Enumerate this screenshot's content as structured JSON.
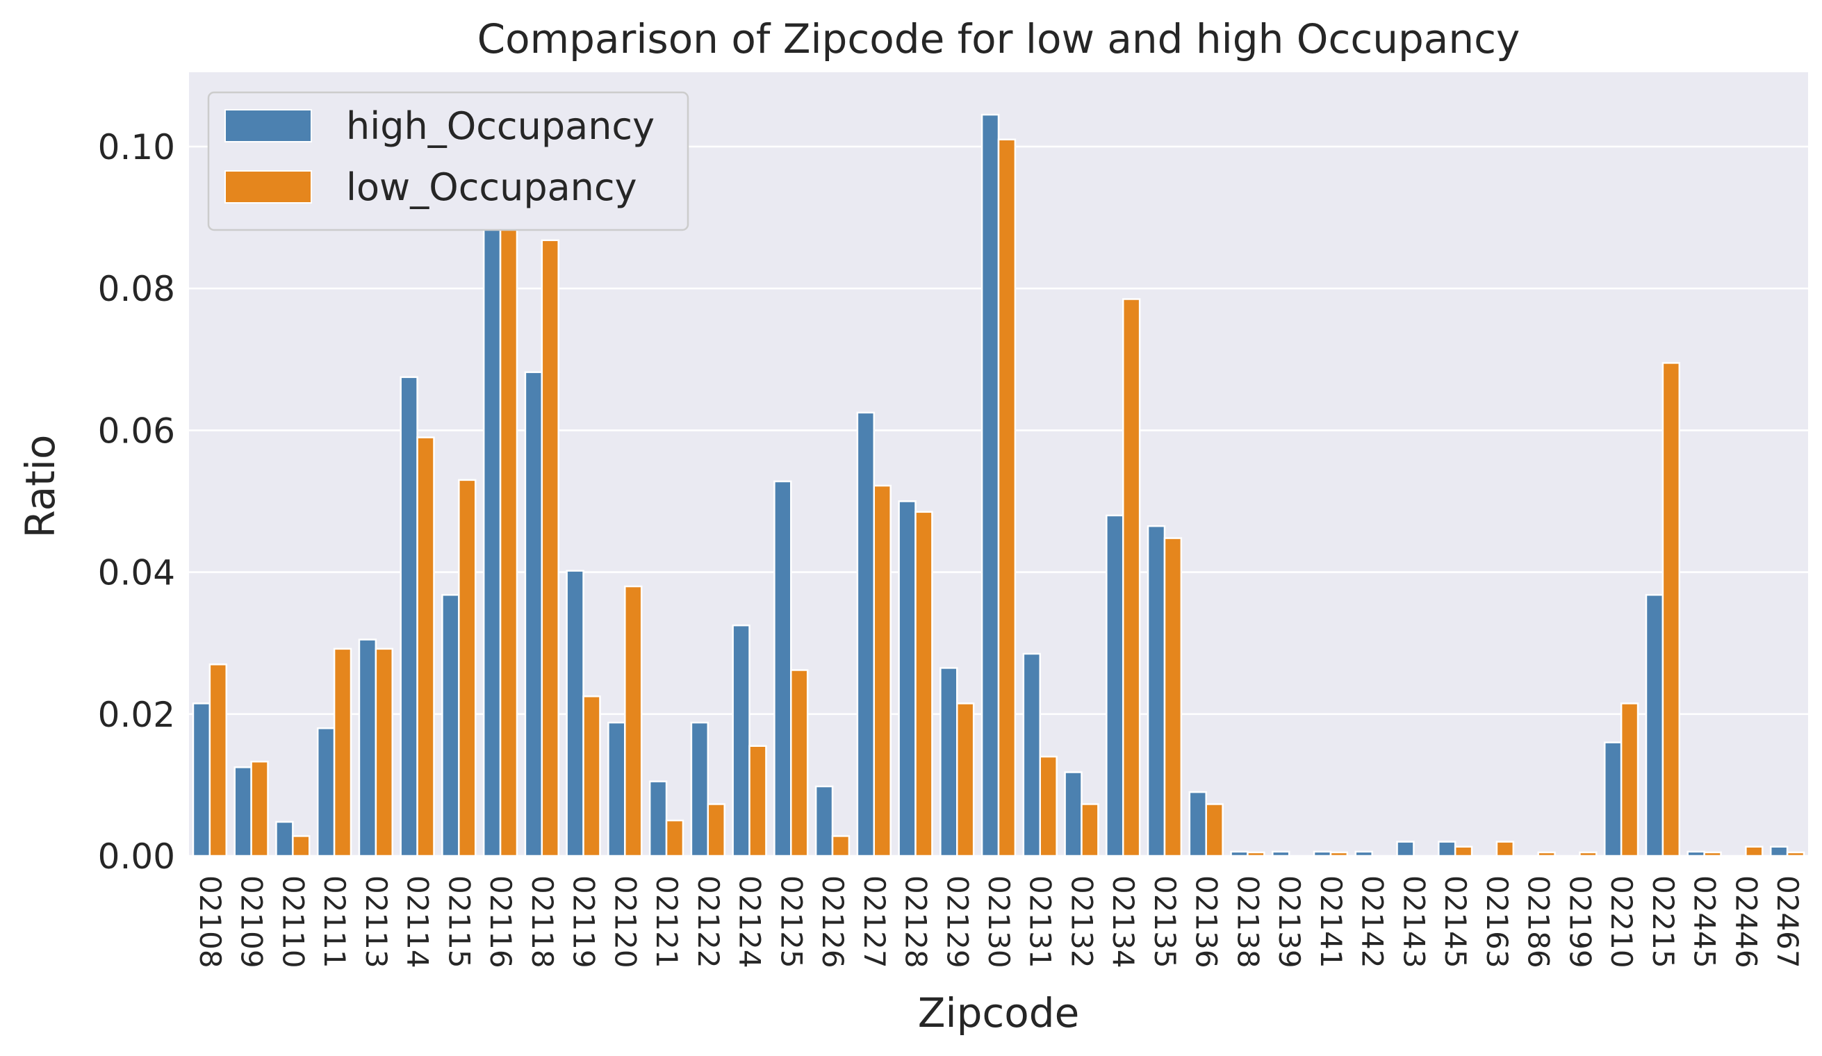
{
  "chart_data": {
    "type": "bar",
    "title": "Comparison of Zipcode for low and high Occupancy",
    "xlabel": "Zipcode",
    "ylabel": "Ratio",
    "ylim": [
      0,
      0.11
    ],
    "yticks": [
      "0.00",
      "0.02",
      "0.04",
      "0.06",
      "0.08",
      "0.10"
    ],
    "grid": true,
    "legend_position": "top-left",
    "categories": [
      "02108",
      "02109",
      "02110",
      "02111",
      "02113",
      "02114",
      "02115",
      "02116",
      "02118",
      "02119",
      "02120",
      "02121",
      "02122",
      "02124",
      "02125",
      "02126",
      "02127",
      "02128",
      "02129",
      "02130",
      "02131",
      "02132",
      "02134",
      "02135",
      "02136",
      "02138",
      "02139",
      "02141",
      "02142",
      "02143",
      "02145",
      "02163",
      "02186",
      "02199",
      "02210",
      "02215",
      "02445",
      "02446",
      "02467"
    ],
    "series": [
      {
        "name": "high_Occupancy",
        "color": "#4c81b0",
        "values": [
          0.0215,
          0.0125,
          0.0048,
          0.018,
          0.0305,
          0.0675,
          0.0368,
          0.105,
          0.0682,
          0.0402,
          0.0188,
          0.0105,
          0.0188,
          0.0325,
          0.0528,
          0.0098,
          0.0625,
          0.05,
          0.0265,
          0.1045,
          0.0285,
          0.0118,
          0.048,
          0.0465,
          0.009,
          0.0006,
          0.0006,
          0.0006,
          0.0006,
          0.002,
          0.002,
          0.0,
          0.0,
          0.0,
          0.016,
          0.0368,
          0.0006,
          0.0,
          0.0013
        ]
      },
      {
        "name": "low_Occupancy",
        "color": "#e5861d",
        "values": [
          0.027,
          0.0133,
          0.0028,
          0.0292,
          0.0292,
          0.059,
          0.053,
          0.103,
          0.0868,
          0.0225,
          0.038,
          0.005,
          0.0073,
          0.0155,
          0.0262,
          0.0028,
          0.0522,
          0.0485,
          0.0215,
          0.101,
          0.014,
          0.0073,
          0.0785,
          0.0448,
          0.0073,
          0.0005,
          0.0,
          0.0005,
          0.0,
          0.0,
          0.0013,
          0.002,
          0.0005,
          0.0005,
          0.0215,
          0.0695,
          0.0005,
          0.0013,
          0.0005
        ]
      }
    ]
  }
}
